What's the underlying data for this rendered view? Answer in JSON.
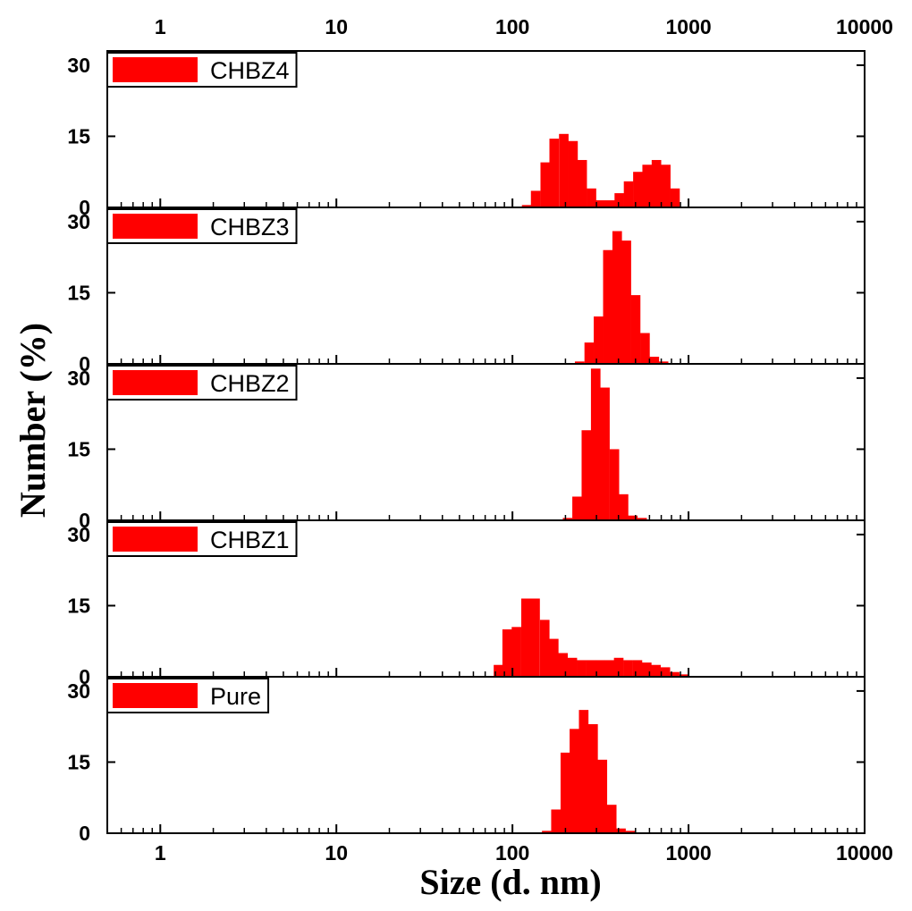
{
  "chart_data": {
    "type": "bar",
    "xlabel": "Size (d. nm)",
    "ylabel": "Number (%)",
    "x_scale": "log",
    "xlim": [
      0.5,
      10000
    ],
    "ylim": [
      0,
      33
    ],
    "x_ticks": [
      1,
      10,
      100,
      1000,
      10000
    ],
    "x_tick_labels": [
      "1",
      "10",
      "100",
      "1000",
      "10000"
    ],
    "y_ticks": [
      0,
      15,
      30
    ],
    "y_tick_labels": [
      "0",
      "15",
      "30"
    ],
    "series_color": "#ff0000",
    "panels": [
      {
        "name": "CHBZ4",
        "bins": [
          {
            "x": 120,
            "y": 0.5
          },
          {
            "x": 135,
            "y": 3.5
          },
          {
            "x": 153,
            "y": 9.5
          },
          {
            "x": 172,
            "y": 14.5
          },
          {
            "x": 195,
            "y": 15.5
          },
          {
            "x": 220,
            "y": 14.0
          },
          {
            "x": 248,
            "y": 10.0
          },
          {
            "x": 280,
            "y": 4.0
          },
          {
            "x": 316,
            "y": 1.5
          },
          {
            "x": 357,
            "y": 1.5
          },
          {
            "x": 403,
            "y": 3.0
          },
          {
            "x": 455,
            "y": 5.5
          },
          {
            "x": 514,
            "y": 7.5
          },
          {
            "x": 580,
            "y": 9.0
          },
          {
            "x": 655,
            "y": 10.0
          },
          {
            "x": 740,
            "y": 9.0
          },
          {
            "x": 835,
            "y": 4.0
          }
        ]
      },
      {
        "name": "CHBZ3",
        "bins": [
          {
            "x": 240,
            "y": 0.5
          },
          {
            "x": 272,
            "y": 4.5
          },
          {
            "x": 307,
            "y": 10.0
          },
          {
            "x": 347,
            "y": 24.0
          },
          {
            "x": 392,
            "y": 28.0
          },
          {
            "x": 442,
            "y": 26.0
          },
          {
            "x": 499,
            "y": 14.5
          },
          {
            "x": 564,
            "y": 6.5
          },
          {
            "x": 637,
            "y": 1.5
          },
          {
            "x": 719,
            "y": 0.5
          }
        ]
      },
      {
        "name": "CHBZ2",
        "bins": [
          {
            "x": 205,
            "y": 0.5
          },
          {
            "x": 232,
            "y": 5.0
          },
          {
            "x": 262,
            "y": 19.0
          },
          {
            "x": 296,
            "y": 32.0
          },
          {
            "x": 334,
            "y": 28.0
          },
          {
            "x": 378,
            "y": 15.0
          },
          {
            "x": 426,
            "y": 5.5
          },
          {
            "x": 481,
            "y": 1.0
          },
          {
            "x": 543,
            "y": 0.5
          }
        ]
      },
      {
        "name": "CHBZ1",
        "bins": [
          {
            "x": 83,
            "y": 2.5
          },
          {
            "x": 93,
            "y": 10.0
          },
          {
            "x": 105,
            "y": 10.5
          },
          {
            "x": 119,
            "y": 16.5
          },
          {
            "x": 134,
            "y": 16.5
          },
          {
            "x": 152,
            "y": 12.0
          },
          {
            "x": 171,
            "y": 8.0
          },
          {
            "x": 193,
            "y": 5.0
          },
          {
            "x": 218,
            "y": 4.0
          },
          {
            "x": 246,
            "y": 3.5
          },
          {
            "x": 278,
            "y": 3.5
          },
          {
            "x": 314,
            "y": 3.5
          },
          {
            "x": 355,
            "y": 3.5
          },
          {
            "x": 400,
            "y": 4.0
          },
          {
            "x": 452,
            "y": 3.5
          },
          {
            "x": 511,
            "y": 3.5
          },
          {
            "x": 577,
            "y": 3.0
          },
          {
            "x": 651,
            "y": 2.5
          },
          {
            "x": 736,
            "y": 2.0
          },
          {
            "x": 831,
            "y": 1.0
          },
          {
            "x": 938,
            "y": 0.5
          }
        ]
      },
      {
        "name": "Pure",
        "bins": [
          {
            "x": 156,
            "y": 0.5
          },
          {
            "x": 176,
            "y": 5.0
          },
          {
            "x": 199,
            "y": 17.0
          },
          {
            "x": 224,
            "y": 22.0
          },
          {
            "x": 253,
            "y": 26.0
          },
          {
            "x": 286,
            "y": 23.0
          },
          {
            "x": 323,
            "y": 15.5
          },
          {
            "x": 365,
            "y": 6.0
          },
          {
            "x": 412,
            "y": 1.0
          },
          {
            "x": 465,
            "y": 0.5
          }
        ]
      }
    ]
  }
}
